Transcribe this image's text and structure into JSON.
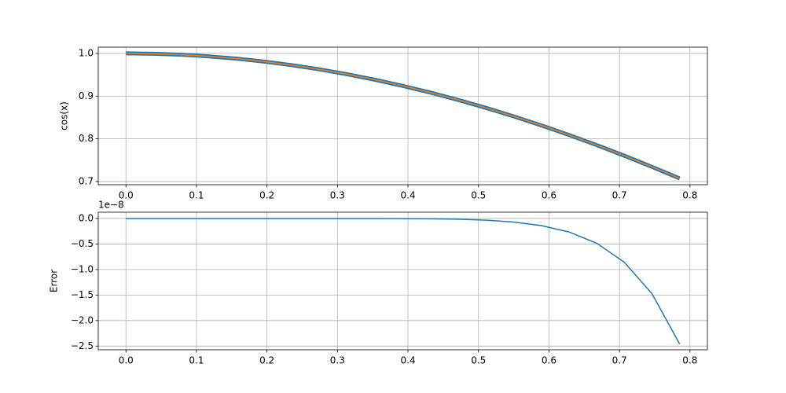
{
  "chart_data": [
    {
      "type": "line",
      "ylabel": "cos(x)",
      "x": [
        0,
        0.0393,
        0.0785,
        0.1178,
        0.1571,
        0.1963,
        0.2356,
        0.2749,
        0.3142,
        0.3534,
        0.3927,
        0.432,
        0.4712,
        0.5105,
        0.5498,
        0.589,
        0.6283,
        0.6676,
        0.7069,
        0.7461,
        0.7854
      ],
      "series": [
        {
          "color": "#1f77b4",
          "width": 5,
          "values": [
            1,
            0.99923,
            0.99692,
            0.99307,
            0.98769,
            0.98079,
            0.97237,
            0.96246,
            0.95106,
            0.93819,
            0.92388,
            0.90814,
            0.89101,
            0.8725,
            0.85264,
            0.83147,
            0.80902,
            0.78532,
            0.76041,
            0.73432,
            0.70711
          ]
        },
        {
          "color": "#ff7f0e",
          "width": 1.5,
          "values": [
            1,
            0.99923,
            0.99692,
            0.99307,
            0.98769,
            0.98079,
            0.97237,
            0.96246,
            0.95106,
            0.93819,
            0.92388,
            0.90814,
            0.89101,
            0.8725,
            0.85264,
            0.83147,
            0.80902,
            0.78532,
            0.76041,
            0.73432,
            0.70711
          ]
        }
      ],
      "xlim": [
        -0.0393,
        0.8247
      ],
      "ylim": [
        0.6925,
        1.0146
      ],
      "xticks": [
        {
          "value": 0,
          "label": "0.0"
        },
        0.1,
        0.2,
        0.3,
        0.4,
        0.5,
        0.6,
        0.7,
        0.8
      ],
      "yticks": [
        0.7,
        0.8,
        0.9,
        {
          "value": 1,
          "label": "1.0"
        }
      ],
      "grid": true
    },
    {
      "type": "line",
      "ylabel": "Error",
      "offset_text": "1e−8",
      "x": [
        0,
        0.0393,
        0.0785,
        0.1178,
        0.1571,
        0.1963,
        0.2356,
        0.2749,
        0.3142,
        0.3534,
        0.3927,
        0.432,
        0.4712,
        0.5105,
        0.5498,
        0.589,
        0.6283,
        0.6676,
        0.7069,
        0.7461,
        0.7854
      ],
      "series": [
        {
          "color": "#1f77b4",
          "width": 1.5,
          "values": [
            0,
            0,
            0,
            0,
            0,
            0,
            0,
            -0.0001,
            -0.0003,
            -0.0008,
            -0.0024,
            -0.0062,
            -0.0149,
            -0.0331,
            -0.0694,
            -0.1387,
            -0.264,
            -0.484,
            -0.858,
            -1.474,
            -2.461
          ]
        }
      ],
      "xlim": [
        -0.0393,
        0.8247
      ],
      "ylim": [
        -2.5725,
        0.1225
      ],
      "xticks": [
        {
          "value": 0,
          "label": "0.0"
        },
        0.1,
        0.2,
        0.3,
        0.4,
        0.5,
        0.6,
        0.7,
        0.8
      ],
      "yticks": [
        {
          "value": -2.5,
          "label": "−2.5"
        },
        {
          "value": -2,
          "label": "−2.0"
        },
        {
          "value": -1.5,
          "label": "−1.5"
        },
        {
          "value": -1,
          "label": "−1.0"
        },
        {
          "value": -0.5,
          "label": "−0.5"
        },
        {
          "value": 0,
          "label": "0.0"
        }
      ],
      "grid": true
    }
  ]
}
